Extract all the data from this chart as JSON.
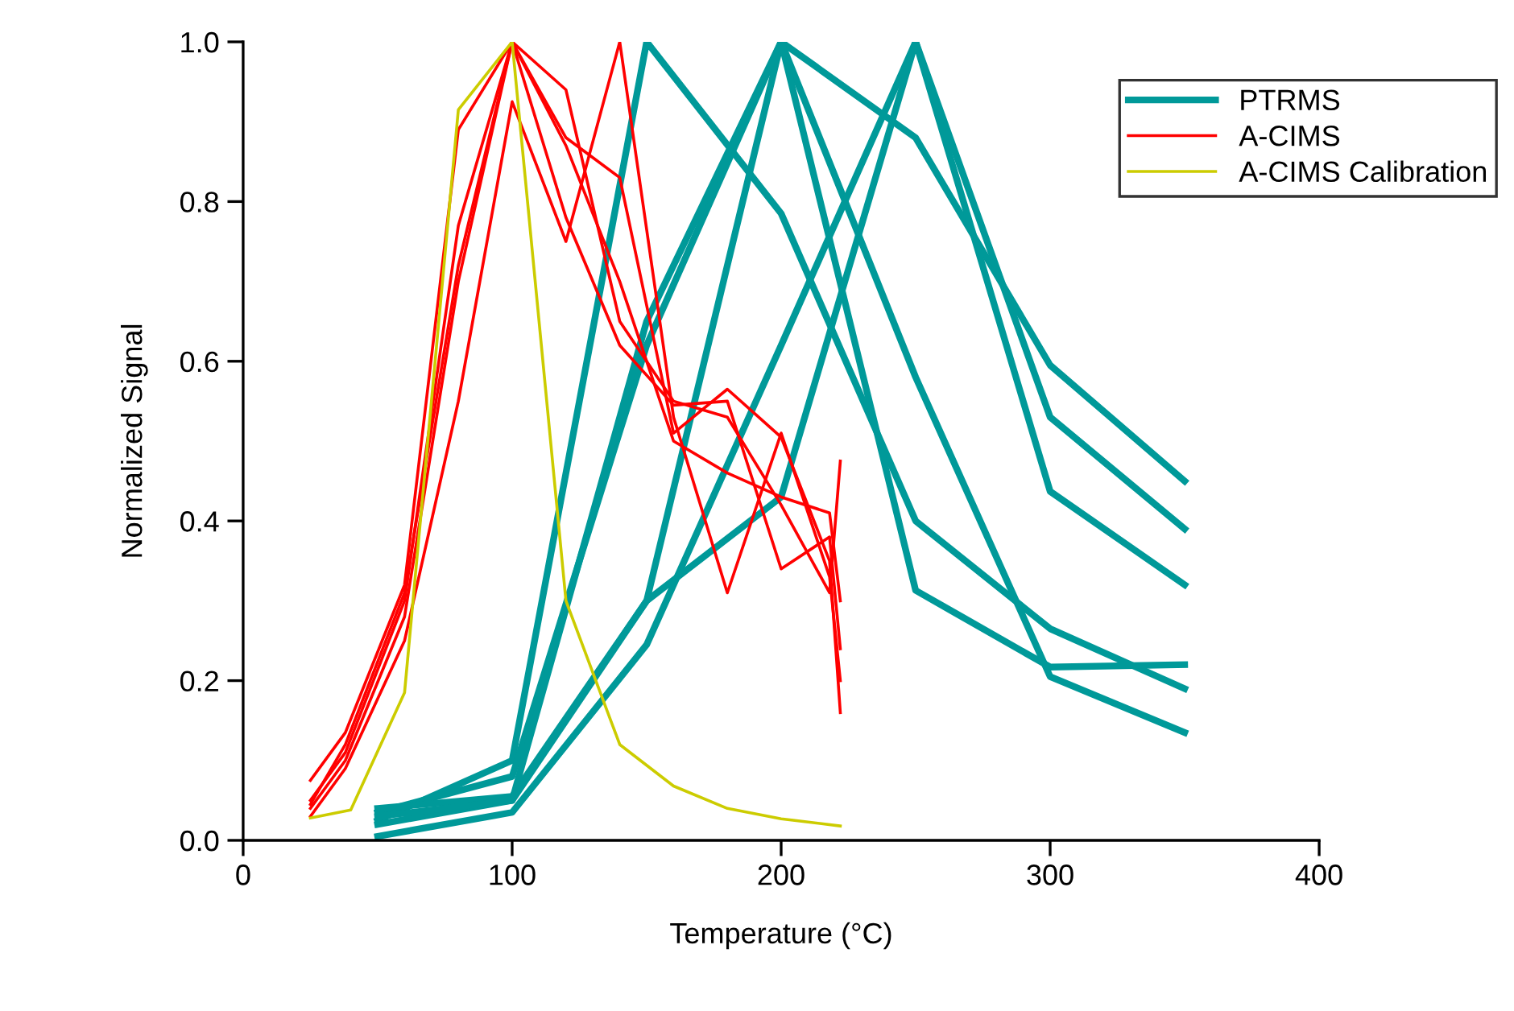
{
  "chart_data": {
    "type": "line",
    "xlabel": "Temperature (°C)",
    "ylabel": "Normalized Signal",
    "xlim": [
      0,
      400
    ],
    "ylim": [
      0,
      1
    ],
    "xticks": [
      0,
      100,
      200,
      300,
      400
    ],
    "yticks": [
      {
        "value": 0,
        "label": "0.0"
      },
      {
        "value": 0.2,
        "label": "0.2"
      },
      {
        "value": 0.4,
        "label": "0.4"
      },
      {
        "value": 0.6,
        "label": "0.6"
      },
      {
        "value": 0.8,
        "label": "0.8"
      },
      {
        "value": 1,
        "label": "1.0"
      }
    ],
    "grid": false,
    "legend": "top right",
    "marker": "none",
    "line_style": "solid",
    "series": [
      {
        "name": "PTRMS",
        "color": "#009999",
        "x": [
          50,
          100,
          150,
          200,
          250,
          300,
          350
        ],
        "values": [
          0.025,
          0.1,
          1.0,
          0.785,
          0.4,
          0.265,
          0.19
        ]
      },
      {
        "color": "#009999",
        "x": [
          50,
          100,
          150,
          200,
          250,
          300,
          350
        ],
        "values": [
          0.035,
          0.08,
          0.62,
          1.0,
          0.88,
          0.595,
          0.45
        ]
      },
      {
        "color": "#009999",
        "x": [
          50,
          100,
          150,
          200,
          250,
          300,
          350
        ],
        "values": [
          0.04,
          0.055,
          0.3,
          1.0,
          0.58,
          0.205,
          0.135
        ]
      },
      {
        "color": "#009999",
        "x": [
          50,
          100,
          150,
          200,
          250,
          300,
          350
        ],
        "values": [
          0.02,
          0.05,
          0.65,
          1.0,
          0.313,
          0.217,
          0.22
        ]
      },
      {
        "color": "#009999",
        "x": [
          50,
          100,
          150,
          200,
          250,
          300,
          350
        ],
        "values": [
          0.005,
          0.035,
          0.245,
          0.62,
          1.0,
          0.53,
          0.39
        ]
      },
      {
        "color": "#009999",
        "x": [
          50,
          100,
          150,
          200,
          250,
          300,
          350
        ],
        "values": [
          0.03,
          0.05,
          0.3,
          0.43,
          1.0,
          0.437,
          0.32
        ]
      },
      {
        "name": "A-CIMS",
        "color": "#ff0000",
        "x": [
          25,
          38,
          60,
          80,
          100,
          120,
          140,
          160,
          180,
          200,
          218,
          222
        ],
        "values": [
          0.075,
          0.135,
          0.32,
          0.89,
          1.0,
          0.94,
          0.65,
          0.55,
          0.53,
          0.42,
          0.31,
          0.475
        ]
      },
      {
        "color": "#ff0000",
        "x": [
          25,
          38,
          60,
          80,
          100,
          120,
          140,
          160,
          180,
          200,
          218,
          222
        ],
        "values": [
          0.05,
          0.11,
          0.3,
          0.77,
          1.0,
          0.88,
          0.83,
          0.51,
          0.565,
          0.505,
          0.35,
          0.16
        ]
      },
      {
        "color": "#ff0000",
        "x": [
          25,
          38,
          60,
          80,
          100,
          120,
          140,
          160,
          180,
          200,
          218,
          222
        ],
        "values": [
          0.03,
          0.09,
          0.25,
          0.55,
          0.925,
          0.75,
          1.0,
          0.53,
          0.31,
          0.51,
          0.33,
          0.2
        ]
      },
      {
        "color": "#ff0000",
        "x": [
          25,
          38,
          60,
          80,
          100,
          120,
          140,
          160,
          180,
          200,
          218,
          222
        ],
        "values": [
          0.04,
          0.1,
          0.28,
          0.7,
          1.0,
          0.78,
          0.62,
          0.545,
          0.55,
          0.34,
          0.38,
          0.24
        ]
      },
      {
        "color": "#ff0000",
        "x": [
          25,
          38,
          60,
          80,
          100,
          120,
          140,
          160,
          180,
          200,
          218,
          222
        ],
        "values": [
          0.045,
          0.12,
          0.31,
          0.72,
          1.0,
          0.87,
          0.7,
          0.5,
          0.46,
          0.43,
          0.41,
          0.3
        ]
      },
      {
        "name": "A-CIMS Calibration",
        "color": "#cccc00",
        "x": [
          25,
          40,
          60,
          80,
          100,
          120,
          140,
          160,
          180,
          200,
          222
        ],
        "values": [
          0.028,
          0.038,
          0.185,
          0.915,
          1.0,
          0.3,
          0.12,
          0.068,
          0.04,
          0.027,
          0.018
        ]
      }
    ]
  }
}
